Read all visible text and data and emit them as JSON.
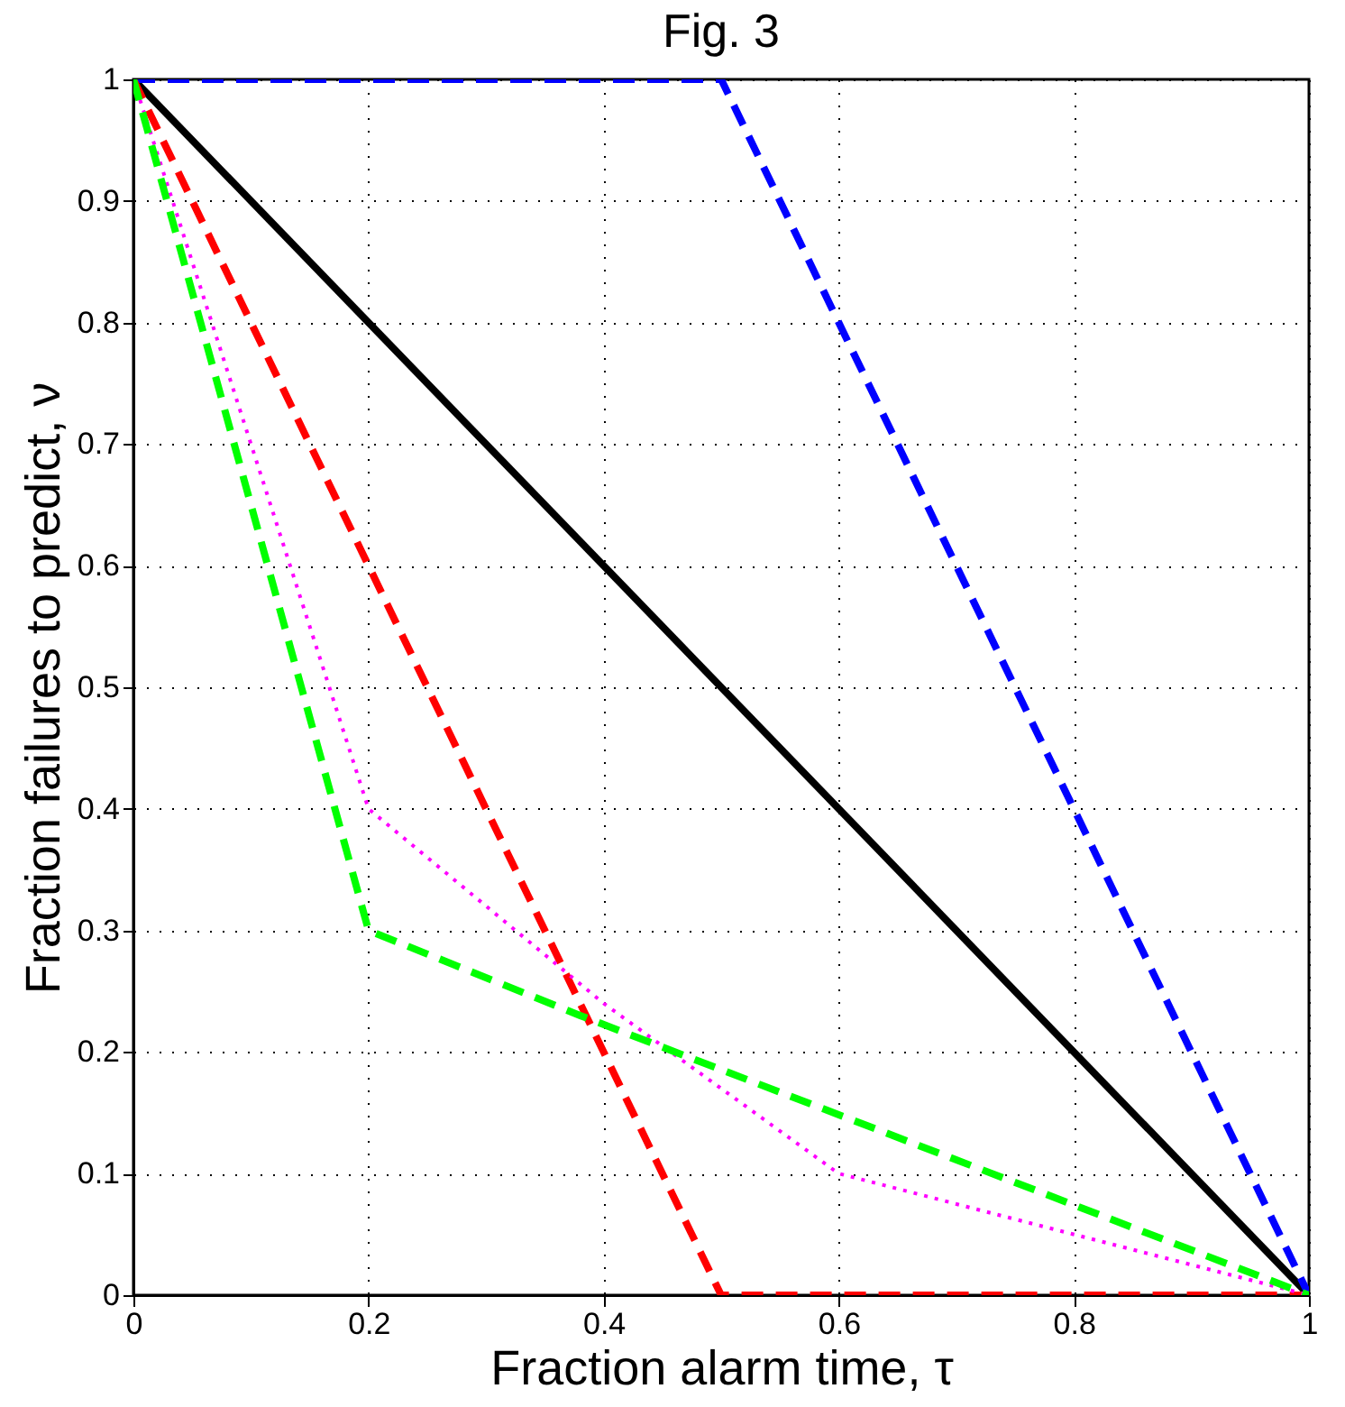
{
  "chart_data": {
    "type": "line",
    "title": "Fig. 3",
    "xlabel": "Fraction alarm time, τ",
    "ylabel": "Fraction failures to predict, ν",
    "xlim": [
      0,
      1
    ],
    "ylim": [
      0,
      1
    ],
    "xticks": [
      0,
      0.2,
      0.4,
      0.6,
      0.8,
      1
    ],
    "yticks": [
      0,
      0.1,
      0.2,
      0.3,
      0.4,
      0.5,
      0.6,
      0.7,
      0.8,
      0.9,
      1
    ],
    "grid": true,
    "marker": "none",
    "series": [
      {
        "color": "#000000",
        "line_style": "solid",
        "x": [
          0,
          1
        ],
        "values": [
          1,
          0
        ]
      },
      {
        "color": "#0000ff",
        "line_style": "dashed",
        "x": [
          0,
          0.5,
          1
        ],
        "values": [
          1,
          1,
          0
        ]
      },
      {
        "color": "#ff0000",
        "line_style": "dashed",
        "x": [
          0,
          0.2,
          0.5,
          1
        ],
        "values": [
          1,
          0.6,
          0,
          0
        ]
      },
      {
        "color": "#ff00ff",
        "line_style": "dotted",
        "x": [
          0,
          0.2,
          0.4,
          0.6,
          1
        ],
        "values": [
          1,
          0.4,
          0.24,
          0.1,
          0
        ]
      },
      {
        "color": "#00ff00",
        "line_style": "dashed",
        "x": [
          0,
          0.2,
          0.38,
          1
        ],
        "values": [
          1,
          0.3,
          0.23,
          0
        ]
      }
    ]
  }
}
